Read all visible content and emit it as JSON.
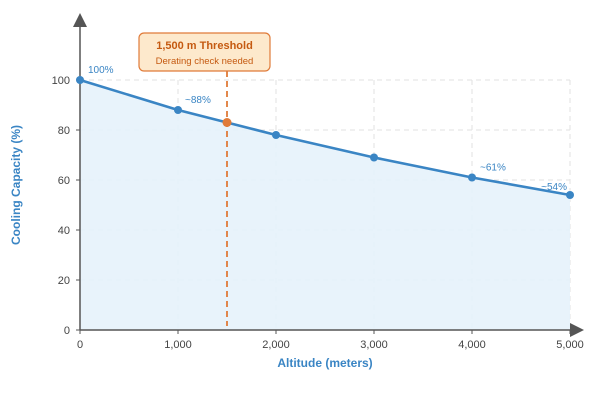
{
  "chart_data": {
    "type": "area",
    "xlabel": "Altitude (meters)",
    "ylabel": "Cooling Capacity (%)",
    "xlim": [
      0,
      5000
    ],
    "ylim": [
      0,
      100
    ],
    "x_ticks": [
      0,
      1000,
      2000,
      3000,
      4000,
      5000
    ],
    "x_tick_labels": [
      "0",
      "1,000",
      "2,000",
      "3,000",
      "4,000",
      "5,000"
    ],
    "y_ticks": [
      0,
      20,
      40,
      60,
      80,
      100
    ],
    "y_tick_labels": [
      "0",
      "20",
      "40",
      "60",
      "80",
      "100"
    ],
    "grid": true,
    "series": [
      {
        "x": [
          0,
          1000,
          2000,
          3000,
          4000,
          5000
        ],
        "y": [
          100,
          88,
          78,
          69,
          61,
          54
        ]
      }
    ],
    "data_labels": [
      {
        "x": 0,
        "y": 100,
        "text": "100%"
      },
      {
        "x": 1000,
        "y": 88,
        "text": "~88%"
      },
      {
        "x": 4000,
        "y": 61,
        "text": "~61%"
      },
      {
        "x": 5000,
        "y": 54,
        "text": "~54%"
      }
    ],
    "threshold": {
      "x": 1500,
      "y": 83,
      "title": "1,500 m Threshold",
      "subtitle": "Derating check needed"
    },
    "colors": {
      "line": "#3a85c4",
      "area": "#e6f2fb",
      "threshold": "#e07b39",
      "callout_bg": "#fde9cc",
      "axis": "#555555",
      "grid": "#e2e2e2"
    }
  }
}
